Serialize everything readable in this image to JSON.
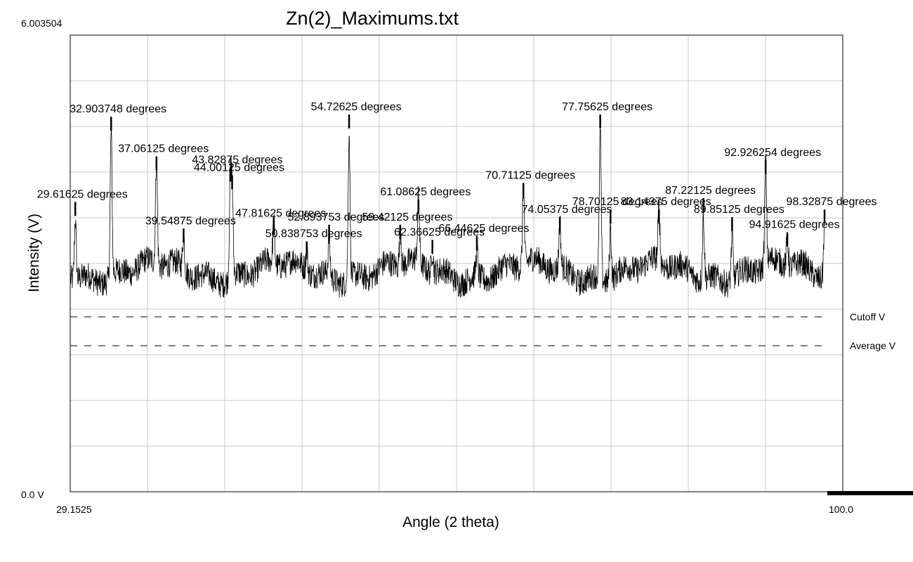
{
  "chart_data": {
    "type": "line",
    "title": "Zn(2)_Maximums.txt",
    "xlabel": "Angle (2 theta)",
    "ylabel": "Intensity (V)",
    "xlim": [
      29.1525,
      100.0
    ],
    "ylim": [
      0.0,
      6.003504
    ],
    "x_min_label": "29.1525",
    "x_max_label": "100.0",
    "y_min_label": "0.0 V",
    "y_max_label": "6.003504",
    "grid": true,
    "baseline_intensity": 2.9,
    "noise_amplitude": 0.18,
    "reference_lines": [
      {
        "name": "Cutoff V",
        "value": 2.3,
        "style": "dashed"
      },
      {
        "name": "Average V",
        "value": 1.92,
        "style": "dashed"
      }
    ],
    "peaks": [
      {
        "x": 29.61625,
        "y": 3.7,
        "label": "29.61625 degrees"
      },
      {
        "x": 32.903748,
        "y": 4.82,
        "label": "32.903748 degrees"
      },
      {
        "x": 37.06125,
        "y": 4.3,
        "label": "37.06125 degrees"
      },
      {
        "x": 39.54875,
        "y": 3.35,
        "label": "39.54875 degrees"
      },
      {
        "x": 43.82875,
        "y": 4.15,
        "label": "43.82875 degrees"
      },
      {
        "x": 44.00125,
        "y": 4.05,
        "label": "44.00125 degrees"
      },
      {
        "x": 47.81625,
        "y": 3.45,
        "label": "47.81625 degrees"
      },
      {
        "x": 50.838753,
        "y": 3.18,
        "label": "50.838753 degrees"
      },
      {
        "x": 52.893753,
        "y": 3.4,
        "label": "52.893753 degrees"
      },
      {
        "x": 54.72625,
        "y": 4.85,
        "label": "54.72625 degrees"
      },
      {
        "x": 59.42125,
        "y": 3.4,
        "label": "59.42125 degrees"
      },
      {
        "x": 61.08625,
        "y": 3.73,
        "label": "61.08625 degrees"
      },
      {
        "x": 62.36625,
        "y": 3.2,
        "label": "62.36625 degrees"
      },
      {
        "x": 66.44625,
        "y": 3.25,
        "label": "66.44625 degrees"
      },
      {
        "x": 70.71125,
        "y": 3.95,
        "label": "70.71125 degrees"
      },
      {
        "x": 74.05375,
        "y": 3.5,
        "label": "74.05375 degrees"
      },
      {
        "x": 77.75625,
        "y": 4.85,
        "label": "77.75625 degrees"
      },
      {
        "x": 78.70125,
        "y": 3.6,
        "label": "78.70125 degrees"
      },
      {
        "x": 83.14375,
        "y": 3.6,
        "label": "83.14375 degrees"
      },
      {
        "x": 87.22125,
        "y": 3.75,
        "label": "87.22125 degrees"
      },
      {
        "x": 89.85125,
        "y": 3.5,
        "label": "89.85125 degrees"
      },
      {
        "x": 92.926254,
        "y": 4.25,
        "label": "92.926254 degrees"
      },
      {
        "x": 94.91625,
        "y": 3.3,
        "label": "94.91625 degrees"
      },
      {
        "x": 98.32875,
        "y": 3.6,
        "label": "98.32875 degrees"
      }
    ]
  }
}
